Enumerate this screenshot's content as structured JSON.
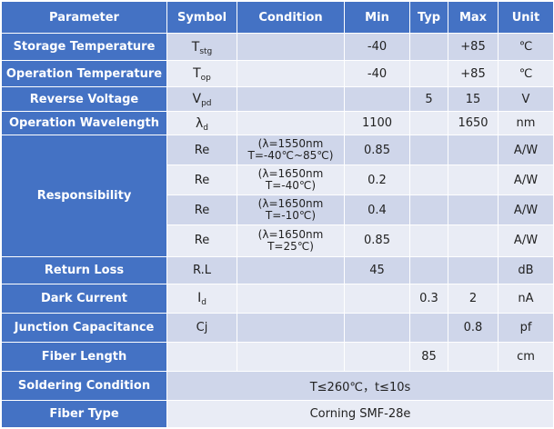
{
  "header": {
    "parameter": "Parameter",
    "symbol": "Symbol",
    "condition": "Condition",
    "min": "Min",
    "typ": "Typ",
    "max": "Max",
    "unit": "Unit"
  },
  "rows": {
    "storage_temp": {
      "label": "Storage Temperature",
      "sym": "T",
      "sym_sub": "stg",
      "min": "-40",
      "max": "+85",
      "unit": "℃"
    },
    "operation_temp": {
      "label": "Operation Temperature",
      "sym": "T",
      "sym_sub": "op",
      "min": "-40",
      "max": "+85",
      "unit": "℃"
    },
    "reverse_voltage": {
      "label": "Reverse Voltage",
      "sym": "V",
      "sym_sub": "pd",
      "typ": "5",
      "max": "15",
      "unit": "V"
    },
    "operation_wavelength": {
      "label": "Operation Wavelength",
      "sym": "λ",
      "sym_sub": "d",
      "min": "1100",
      "max": "1650",
      "unit": "nm"
    },
    "responsibility": {
      "label": "Responsibility",
      "subrows": [
        {
          "sym": "Re",
          "cond1": "(λ=1550nm",
          "cond2": "T=-40℃~85℃)",
          "min": "0.85",
          "unit": "A/W"
        },
        {
          "sym": "Re",
          "cond1": "(λ=1650nm",
          "cond2": "T=-40℃)",
          "min": "0.2",
          "unit": "A/W"
        },
        {
          "sym": "Re",
          "cond1": "(λ=1650nm",
          "cond2": "T=-10℃)",
          "min": "0.4",
          "unit": "A/W"
        },
        {
          "sym": "Re",
          "cond1": "(λ=1650nm",
          "cond2": "T=25℃)",
          "min": "0.85",
          "unit": "A/W"
        }
      ]
    },
    "return_loss": {
      "label": "Return Loss",
      "sym": "R.L",
      "min": "45",
      "unit": "dB"
    },
    "dark_current": {
      "label": "Dark Current",
      "sym": "I",
      "sym_sub": "d",
      "typ": "0.3",
      "max": "2",
      "unit": "nA"
    },
    "junction_capacitance": {
      "label": "Junction Capacitance",
      "sym": "Cj",
      "max": "0.8",
      "unit": "pf"
    },
    "fiber_length": {
      "label": "Fiber Length",
      "typ": "85",
      "unit": "cm"
    },
    "soldering": {
      "label": "Soldering Condition",
      "value": "T≤260℃，t≤10s"
    },
    "fiber_type": {
      "label": "Fiber Type",
      "value": "Corning SMF-28e"
    }
  }
}
